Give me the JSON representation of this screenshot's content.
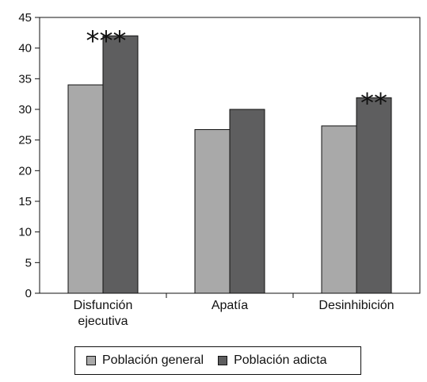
{
  "chart_data": {
    "type": "bar",
    "categories": [
      "Disfunción ejecutiva",
      "Apatía",
      "Desinhibición"
    ],
    "category_lines": [
      [
        "Disfunción",
        "ejecutiva"
      ],
      [
        "Apatía"
      ],
      [
        "Desinhibición"
      ]
    ],
    "series": [
      {
        "name": "Población general",
        "color": "#a9a9a9",
        "values": [
          34,
          26.7,
          27.3
        ]
      },
      {
        "name": "Población adicta",
        "color": "#5e5e5f",
        "values": [
          42,
          30,
          31.9
        ]
      }
    ],
    "significance": [
      "***",
      "",
      "**"
    ],
    "ylim": [
      0,
      45
    ],
    "yticks": [
      0,
      5,
      10,
      15,
      20,
      25,
      30,
      35,
      40,
      45
    ],
    "grid": false,
    "legend_position": "bottom"
  }
}
